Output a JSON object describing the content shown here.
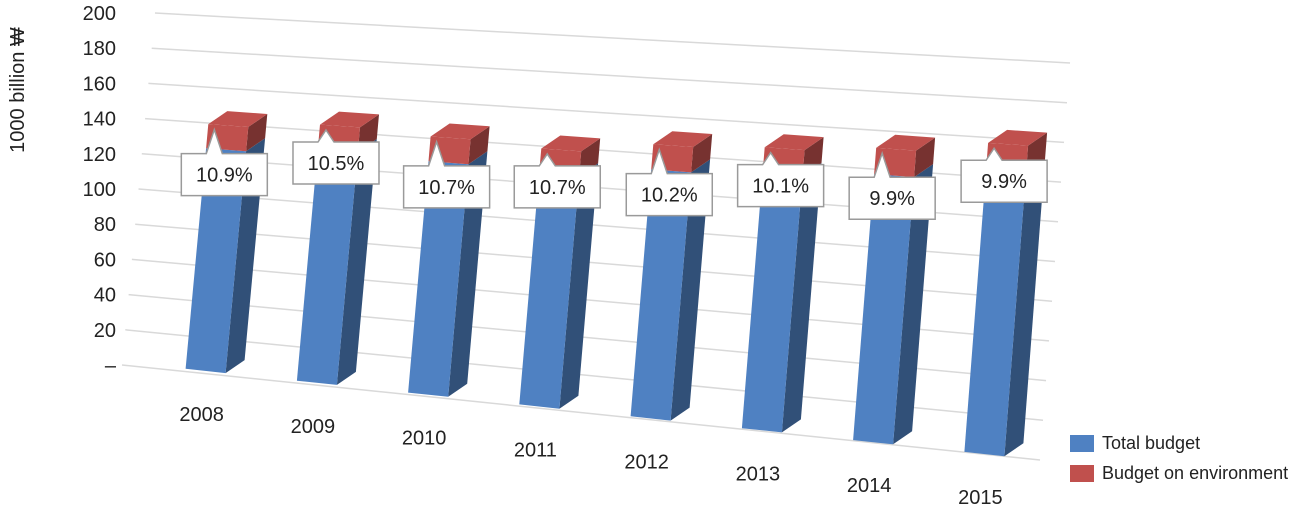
{
  "chart_data": {
    "type": "bar",
    "stacked": true,
    "projection": "3d",
    "ylabel": "1000 billion ₩",
    "ylim": [
      0,
      200
    ],
    "yticks": [
      0,
      20,
      40,
      60,
      80,
      100,
      120,
      140,
      160,
      180,
      200
    ],
    "ytick_labels": [
      "–",
      "20",
      "40",
      "60",
      "80",
      "100",
      "120",
      "140",
      "160",
      "180",
      "200"
    ],
    "categories": [
      "2008",
      "2009",
      "2010",
      "2011",
      "2012",
      "2013",
      "2014",
      "2015"
    ],
    "series": [
      {
        "name": "Total budget",
        "color": "#4f81c2",
        "values": [
          124.7,
          128.9,
          126.7,
          124.7,
          131.2,
          133.6,
          137.2,
          143.0
        ]
      },
      {
        "name": "Budget on environment",
        "color": "#c0504d",
        "values": [
          13.6,
          13.6,
          13.6,
          13.4,
          13.4,
          13.5,
          13.6,
          14.2
        ]
      }
    ],
    "annotations": [
      "10.9%",
      "10.5%",
      "10.7%",
      "10.7%",
      "10.2%",
      "10.1%",
      "9.9%",
      "9.9%"
    ],
    "grid": true,
    "legend_position": "bottom-right"
  }
}
